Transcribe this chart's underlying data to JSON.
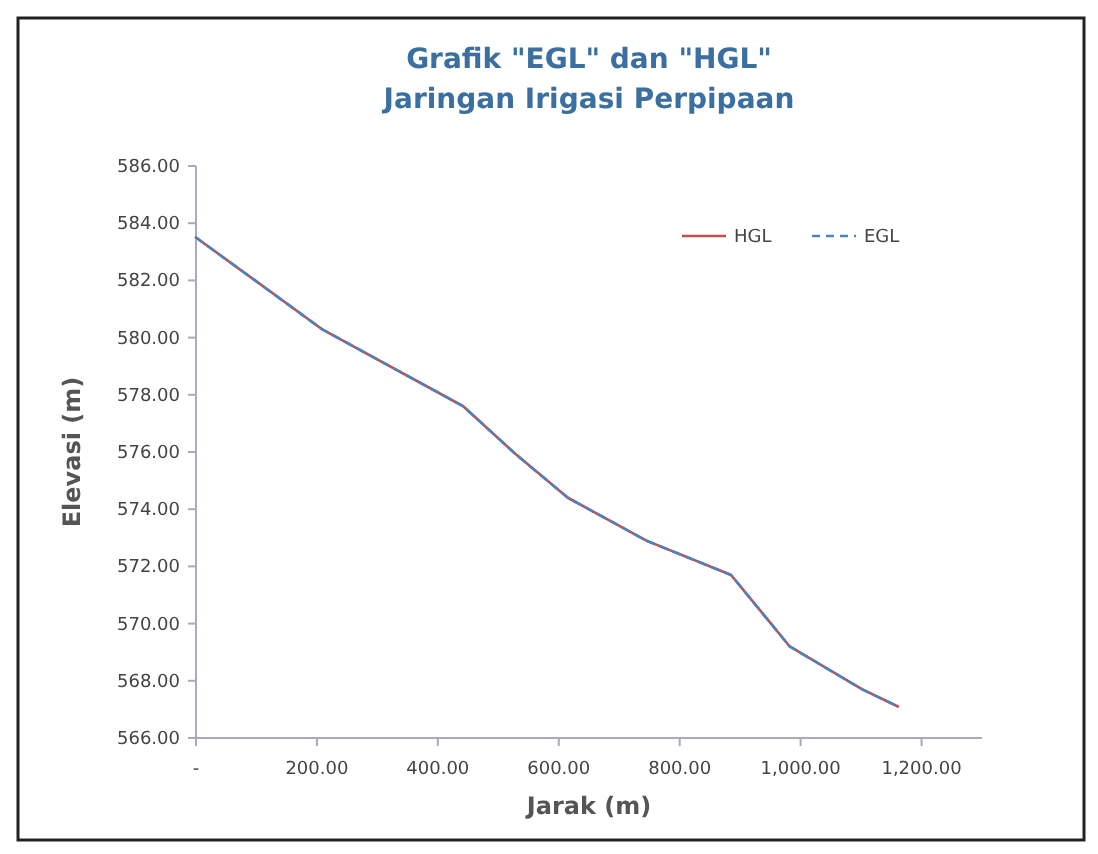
{
  "chart_data": {
    "type": "line",
    "title": "Grafik \"EGL\" dan \"HGL\"",
    "subtitle": "Jaringan Irigasi Perpipaan",
    "xlabel": "Jarak (m)",
    "ylabel": "Elevasi (m)",
    "xlim": [
      0,
      1300
    ],
    "xticks": [
      {
        "value": 0,
        "label": "-"
      },
      {
        "value": 200,
        "label": "200.00"
      },
      {
        "value": 400,
        "label": "400.00"
      },
      {
        "value": 600,
        "label": "600.00"
      },
      {
        "value": 800,
        "label": "800.00"
      },
      {
        "value": 1000,
        "label": "1,000.00"
      },
      {
        "value": 1200,
        "label": "1,200.00"
      }
    ],
    "ylim": [
      566,
      586
    ],
    "yticks": [
      {
        "value": 566,
        "label": "566.00"
      },
      {
        "value": 568,
        "label": "568.00"
      },
      {
        "value": 570,
        "label": "570.00"
      },
      {
        "value": 572,
        "label": "572.00"
      },
      {
        "value": 574,
        "label": "574.00"
      },
      {
        "value": 576,
        "label": "576.00"
      },
      {
        "value": 578,
        "label": "578.00"
      },
      {
        "value": 580,
        "label": "580.00"
      },
      {
        "value": 582,
        "label": "582.00"
      },
      {
        "value": 584,
        "label": "584.00"
      },
      {
        "value": 586,
        "label": "586.00"
      }
    ],
    "x": [
      0,
      208,
      442,
      530,
      615,
      745,
      885,
      982,
      1102,
      1161
    ],
    "series": [
      {
        "name": "HGL",
        "color": "#c0504d",
        "line_style": "solid",
        "values": [
          583.5,
          580.3,
          577.6,
          575.9,
          574.4,
          572.9,
          571.7,
          569.2,
          567.7,
          567.1
        ]
      },
      {
        "name": "EGL",
        "color": "#4f81bd",
        "line_style": "dashed",
        "values": [
          583.5,
          580.3,
          577.6,
          575.9,
          574.4,
          572.9,
          571.7,
          569.2,
          567.7,
          567.1
        ]
      }
    ],
    "legend": "top right",
    "grid": false,
    "marker": "none"
  }
}
